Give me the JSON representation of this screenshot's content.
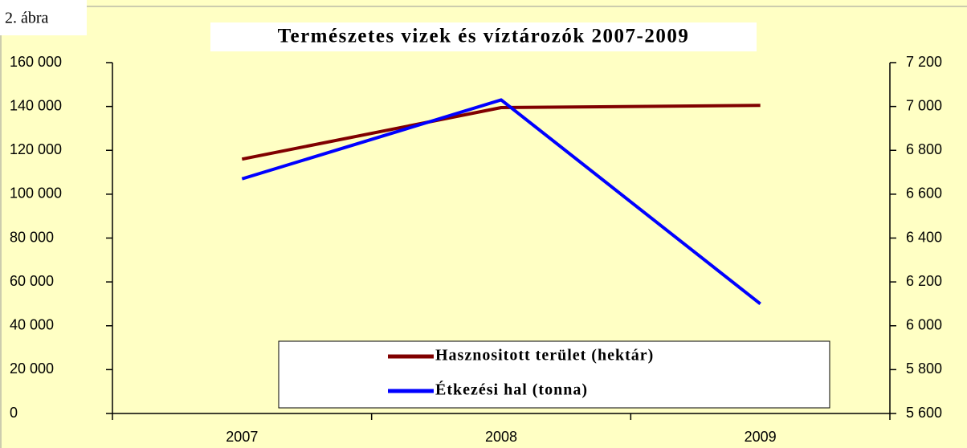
{
  "chart_data": {
    "type": "line",
    "label": "2. ábra",
    "title": "Természetes vizek és víztározók 2007-2009",
    "categories": [
      "2007",
      "2008",
      "2009"
    ],
    "series": [
      {
        "name": "Hasznositott terület (hektár)",
        "color": "#800000",
        "values": [
          116000,
          139500,
          140500
        ]
      },
      {
        "name": "Étkezési hal (tonna)",
        "color": "#0000ff",
        "values": [
          6670,
          7030,
          6100
        ],
        "axis": "y2"
      }
    ],
    "ylim": [
      0,
      160000
    ],
    "yticks": [
      0,
      {
        "value": 20000,
        "label": "20 000"
      },
      {
        "value": 40000,
        "label": "40 000"
      },
      {
        "value": 60000,
        "label": "60 000"
      },
      {
        "value": 80000,
        "label": "80 000"
      },
      {
        "value": 100000,
        "label": "100 000"
      },
      {
        "value": 120000,
        "label": "120 000"
      },
      {
        "value": 140000,
        "label": "140 000"
      },
      {
        "value": 160000,
        "label": "160 000"
      }
    ],
    "y2lim": [
      5600,
      7200
    ],
    "y2ticks": [
      {
        "value": 5600,
        "label": "5 600"
      },
      {
        "value": 5800,
        "label": "5 800"
      },
      {
        "value": 6000,
        "label": "6 000"
      },
      {
        "value": 6200,
        "label": "6 200"
      },
      {
        "value": 6400,
        "label": "6 400"
      },
      {
        "value": 6600,
        "label": "6 600"
      },
      {
        "value": 6800,
        "label": "6 800"
      },
      {
        "value": 7000,
        "label": "7 000"
      },
      {
        "value": 7200,
        "label": "7 200"
      }
    ],
    "grid": false
  }
}
